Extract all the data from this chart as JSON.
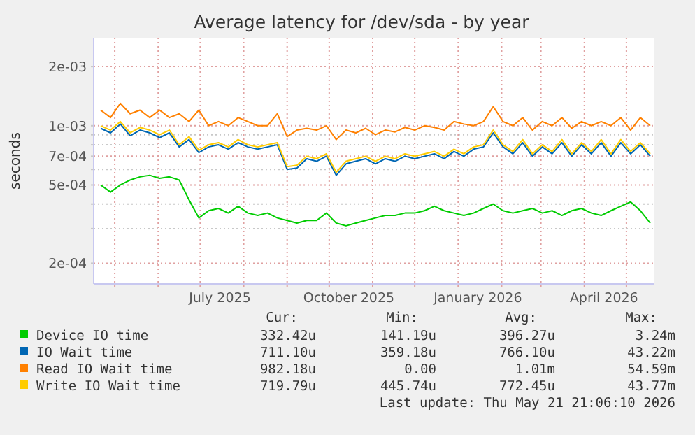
{
  "chart_data": {
    "type": "line",
    "title": "Average latency for /dev/sda - by year",
    "ylabel": "seconds",
    "log": "y",
    "grid": true,
    "legend": "bottom",
    "ylim": [
      0.000157,
      0.0028
    ],
    "yticks": [
      {
        "value": 0.0002,
        "label": "2e-04"
      },
      {
        "value": 0.0003,
        "label": null
      },
      {
        "value": 0.0004,
        "label": null
      },
      {
        "value": 0.0005,
        "label": "5e-04"
      },
      {
        "value": 0.0006,
        "label": null
      },
      {
        "value": 0.0007,
        "label": "7e-04"
      },
      {
        "value": 0.0008,
        "label": null
      },
      {
        "value": 0.0009,
        "label": null
      },
      {
        "value": 0.001,
        "label": "1e-03"
      },
      {
        "value": 0.002,
        "label": "2e-03"
      }
    ],
    "xlim": [
      "2025-04-16",
      "2026-05-21"
    ],
    "xticks": [
      {
        "value": "2025-05-01",
        "label": null
      },
      {
        "value": "2025-06-01",
        "label": null
      },
      {
        "value": "2025-07-01",
        "label": null
      },
      {
        "value": "2025-07-15",
        "label": "July 2025"
      },
      {
        "value": "2025-08-01",
        "label": null
      },
      {
        "value": "2025-09-01",
        "label": null
      },
      {
        "value": "2025-10-01",
        "label": null
      },
      {
        "value": "2025-10-15",
        "label": "October 2025"
      },
      {
        "value": "2025-11-01",
        "label": null
      },
      {
        "value": "2025-12-01",
        "label": null
      },
      {
        "value": "2026-01-01",
        "label": null
      },
      {
        "value": "2026-01-15",
        "label": "January 2026"
      },
      {
        "value": "2026-02-01",
        "label": null
      },
      {
        "value": "2026-03-01",
        "label": null
      },
      {
        "value": "2026-04-01",
        "label": null
      },
      {
        "value": "2026-04-15",
        "label": "April 2026"
      },
      {
        "value": "2026-05-01",
        "label": null
      }
    ],
    "x": [
      "2025-04-21",
      "2025-04-28",
      "2025-05-05",
      "2025-05-12",
      "2025-05-19",
      "2025-05-26",
      "2025-06-02",
      "2025-06-09",
      "2025-06-16",
      "2025-06-23",
      "2025-06-30",
      "2025-07-07",
      "2025-07-14",
      "2025-07-21",
      "2025-07-28",
      "2025-08-04",
      "2025-08-11",
      "2025-08-18",
      "2025-08-25",
      "2025-09-01",
      "2025-09-08",
      "2025-09-15",
      "2025-09-22",
      "2025-09-29",
      "2025-10-06",
      "2025-10-13",
      "2025-10-20",
      "2025-10-27",
      "2025-11-03",
      "2025-11-10",
      "2025-11-17",
      "2025-11-24",
      "2025-12-01",
      "2025-12-08",
      "2025-12-15",
      "2025-12-22",
      "2025-12-29",
      "2026-01-05",
      "2026-01-12",
      "2026-01-19",
      "2026-01-26",
      "2026-02-02",
      "2026-02-09",
      "2026-02-16",
      "2026-02-23",
      "2026-03-02",
      "2026-03-09",
      "2026-03-16",
      "2026-03-23",
      "2026-03-30",
      "2026-04-06",
      "2026-04-13",
      "2026-04-20",
      "2026-04-27",
      "2026-05-04",
      "2026-05-11",
      "2026-05-18"
    ],
    "series": [
      {
        "name": "Device IO time",
        "color": "#00cc00",
        "values": [
          0.0005,
          0.00046,
          0.0005,
          0.00053,
          0.00055,
          0.00056,
          0.00054,
          0.00055,
          0.00053,
          0.00042,
          0.00034,
          0.00037,
          0.00038,
          0.00036,
          0.00039,
          0.00036,
          0.00035,
          0.00036,
          0.00034,
          0.00033,
          0.00032,
          0.00033,
          0.00033,
          0.00036,
          0.00032,
          0.00031,
          0.00032,
          0.00033,
          0.00034,
          0.00035,
          0.00035,
          0.00036,
          0.00036,
          0.00037,
          0.00039,
          0.00037,
          0.00036,
          0.00035,
          0.00036,
          0.00038,
          0.0004,
          0.00037,
          0.00036,
          0.00037,
          0.00038,
          0.00036,
          0.00037,
          0.00035,
          0.00037,
          0.00038,
          0.00036,
          0.00035,
          0.00037,
          0.00039,
          0.00041,
          0.00037,
          0.00032
        ]
      },
      {
        "name": "IO Wait time",
        "color": "#0066b3",
        "values": [
          0.00097,
          0.00092,
          0.00102,
          0.00089,
          0.00095,
          0.00092,
          0.00087,
          0.00092,
          0.00078,
          0.00085,
          0.00073,
          0.00078,
          0.0008,
          0.00076,
          0.00082,
          0.00078,
          0.00076,
          0.00078,
          0.0008,
          0.0006,
          0.00061,
          0.00068,
          0.00066,
          0.0007,
          0.00056,
          0.00064,
          0.00066,
          0.00068,
          0.00064,
          0.00068,
          0.00066,
          0.0007,
          0.00068,
          0.0007,
          0.00072,
          0.00068,
          0.00074,
          0.0007,
          0.00076,
          0.00078,
          0.00092,
          0.00078,
          0.00072,
          0.00082,
          0.0007,
          0.00078,
          0.00072,
          0.00082,
          0.0007,
          0.0008,
          0.00072,
          0.00082,
          0.0007,
          0.00082,
          0.00072,
          0.0008,
          0.0007
        ]
      },
      {
        "name": "Read IO Wait time",
        "color": "#ff8000",
        "values": [
          0.0012,
          0.0011,
          0.0013,
          0.00115,
          0.0012,
          0.0011,
          0.0012,
          0.0011,
          0.00115,
          0.00105,
          0.0012,
          0.001,
          0.00105,
          0.001,
          0.0011,
          0.00105,
          0.001,
          0.001,
          0.00115,
          0.00088,
          0.00095,
          0.00097,
          0.00095,
          0.001,
          0.00085,
          0.00095,
          0.00092,
          0.00097,
          0.0009,
          0.00095,
          0.00093,
          0.00098,
          0.00095,
          0.001,
          0.00098,
          0.00095,
          0.00105,
          0.00102,
          0.001,
          0.00105,
          0.00125,
          0.00105,
          0.001,
          0.0011,
          0.00095,
          0.00105,
          0.001,
          0.0011,
          0.00097,
          0.00105,
          0.001,
          0.00105,
          0.001,
          0.0011,
          0.00095,
          0.0011,
          0.001
        ]
      },
      {
        "name": "Write IO Wait time",
        "color": "#ffcc00",
        "values": [
          0.001,
          0.00095,
          0.00105,
          0.00092,
          0.00098,
          0.00095,
          0.0009,
          0.00095,
          0.0008,
          0.00088,
          0.00075,
          0.0008,
          0.00082,
          0.00078,
          0.00085,
          0.0008,
          0.00078,
          0.0008,
          0.00082,
          0.00062,
          0.00063,
          0.0007,
          0.00068,
          0.00072,
          0.00058,
          0.00066,
          0.00068,
          0.0007,
          0.00066,
          0.0007,
          0.00068,
          0.00072,
          0.0007,
          0.00072,
          0.00074,
          0.0007,
          0.00076,
          0.00072,
          0.00078,
          0.0008,
          0.00095,
          0.0008,
          0.00074,
          0.00085,
          0.00072,
          0.0008,
          0.00074,
          0.00085,
          0.00072,
          0.00082,
          0.00074,
          0.00085,
          0.00072,
          0.00085,
          0.00074,
          0.00082,
          0.00072
        ]
      }
    ],
    "annotations": [
      "Cur:",
      "Min:",
      "Avg:",
      "Max:",
      "332.42u",
      "141.19u",
      "396.27u",
      "3.24m",
      "711.10u",
      "359.18u",
      "766.10u",
      "43.22m",
      "982.18u",
      "0.00",
      "1.01m",
      "54.59m",
      "719.79u",
      "445.74u",
      "772.45u",
      "43.77m",
      "Last update: Thu May 21 21:06:10 2026"
    ]
  }
}
